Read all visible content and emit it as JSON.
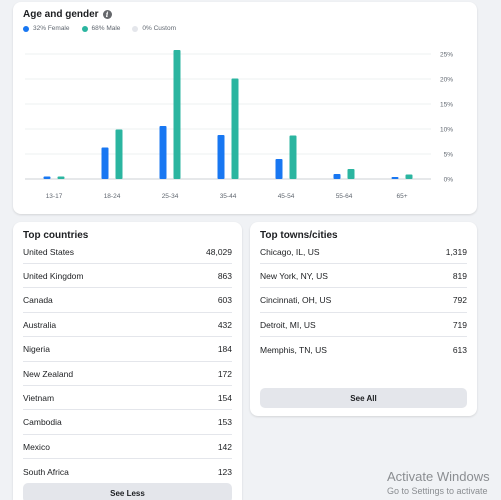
{
  "age_gender": {
    "title": "Age and gender",
    "legend": [
      {
        "label": "32% Female",
        "color": "#1877f2"
      },
      {
        "label": "68% Male",
        "color": "#2bb5a0"
      },
      {
        "label": "0% Custom",
        "color": "#e4e6eb"
      }
    ]
  },
  "chart_data": {
    "type": "bar",
    "categories": [
      "13-17",
      "18-24",
      "25-34",
      "35-44",
      "45-54",
      "55-64",
      "65+"
    ],
    "series": [
      {
        "name": "Female",
        "color": "#1877f2",
        "values": [
          0.5,
          6.3,
          10.6,
          8.8,
          4.0,
          1.0,
          0.4
        ]
      },
      {
        "name": "Male",
        "color": "#2bb5a0",
        "values": [
          0.5,
          9.9,
          25.8,
          20.1,
          8.7,
          2.0,
          0.9
        ]
      }
    ],
    "yticks": [
      "25%",
      "20%",
      "15%",
      "10%",
      "5%",
      "0%"
    ],
    "ylim": [
      0,
      25
    ],
    "grid": true
  },
  "countries": {
    "title": "Top countries",
    "rows": [
      {
        "name": "United States",
        "value": "48,029"
      },
      {
        "name": "United Kingdom",
        "value": "863"
      },
      {
        "name": "Canada",
        "value": "603"
      },
      {
        "name": "Australia",
        "value": "432"
      },
      {
        "name": "Nigeria",
        "value": "184"
      },
      {
        "name": "New Zealand",
        "value": "172"
      },
      {
        "name": "Vietnam",
        "value": "154"
      },
      {
        "name": "Cambodia",
        "value": "153"
      },
      {
        "name": "Mexico",
        "value": "142"
      },
      {
        "name": "South Africa",
        "value": "123"
      }
    ],
    "button_label": "See Less"
  },
  "cities": {
    "title": "Top towns/cities",
    "rows": [
      {
        "name": "Chicago, IL, US",
        "value": "1,319"
      },
      {
        "name": "New York, NY, US",
        "value": "819"
      },
      {
        "name": "Cincinnati, OH, US",
        "value": "792"
      },
      {
        "name": "Detroit, MI, US",
        "value": "719"
      },
      {
        "name": "Memphis, TN, US",
        "value": "613"
      }
    ],
    "button_label": "See All"
  },
  "watermark": {
    "title": "Activate Windows",
    "subtitle": "Go to Settings to activate"
  }
}
